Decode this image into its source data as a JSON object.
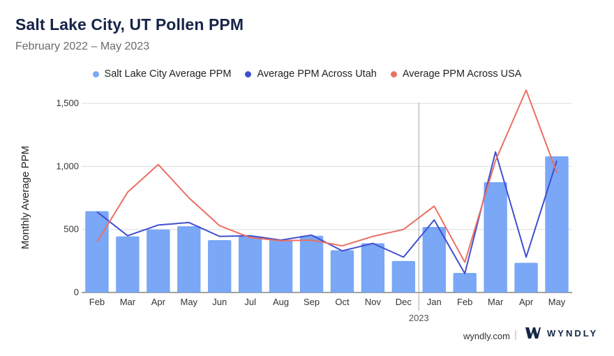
{
  "header": {
    "title": "Salt Lake City, UT Pollen PPM",
    "subtitle": "February 2022 – May 2023"
  },
  "legend": [
    {
      "label": "Salt Lake City Average PPM",
      "color": "#7aa7f6"
    },
    {
      "label": "Average PPM Across Utah",
      "color": "#3f4fcf"
    },
    {
      "label": "Average PPM Across USA",
      "color": "#ec6f63"
    }
  ],
  "footer": {
    "site": "wyndly.com",
    "separator": "|",
    "brand": "WYNDLY",
    "logo_icon": "wyndly-w-logo-icon"
  },
  "chart_data": {
    "type": "bar",
    "title": "Salt Lake City, UT Pollen PPM",
    "subtitle": "February 2022 – May 2023",
    "ylabel": "Monthly Average PPM",
    "xlabel": "",
    "categories": [
      "Feb",
      "Mar",
      "Apr",
      "May",
      "Jun",
      "Jul",
      "Aug",
      "Sep",
      "Oct",
      "Nov",
      "Dec",
      "Jan",
      "Feb",
      "Mar",
      "Apr",
      "May"
    ],
    "year_marker": {
      "label": "2023",
      "before_category_index": 11
    },
    "ylim": [
      0,
      1600
    ],
    "yticks": [
      0,
      500,
      1000,
      1500
    ],
    "ytick_labels": [
      "0",
      "500",
      "1,000",
      "1,500"
    ],
    "grid": true,
    "legend_position": "top-center",
    "series": [
      {
        "name": "Salt Lake City Average PPM",
        "type": "bar",
        "color": "#7aa7f6",
        "values": [
          645,
          445,
          500,
          525,
          415,
          445,
          415,
          450,
          335,
          390,
          250,
          520,
          155,
          875,
          235,
          1080
        ]
      },
      {
        "name": "Average PPM Across Utah",
        "type": "line",
        "color": "#3f4fcf",
        "values": [
          640,
          450,
          535,
          555,
          445,
          450,
          415,
          455,
          330,
          390,
          280,
          575,
          150,
          1115,
          280,
          1045
        ]
      },
      {
        "name": "Average PPM Across USA",
        "type": "line",
        "color": "#ec6f63",
        "values": [
          400,
          795,
          1015,
          750,
          530,
          435,
          410,
          415,
          370,
          445,
          500,
          685,
          240,
          1045,
          1605,
          950
        ]
      }
    ]
  }
}
